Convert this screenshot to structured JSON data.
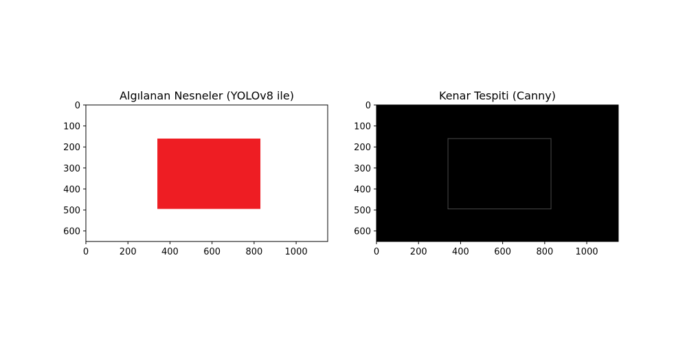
{
  "chart_data": [
    {
      "type": "image",
      "title": "Algılanan Nesneler (YOLOv8 ile)",
      "xlim": [
        0,
        1150
      ],
      "ylim": [
        650,
        0
      ],
      "xticks": [
        0,
        200,
        400,
        600,
        800,
        1000
      ],
      "yticks": [
        0,
        100,
        200,
        300,
        400,
        500,
        600
      ],
      "background": "#ffffff",
      "rectangles": [
        {
          "x0": 340,
          "y0": 160,
          "x1": 830,
          "y1": 495,
          "fill": "#ee1d23",
          "stroke": "none"
        }
      ]
    },
    {
      "type": "image",
      "title": "Kenar Tespiti (Canny)",
      "xlim": [
        0,
        1150
      ],
      "ylim": [
        650,
        0
      ],
      "xticks": [
        0,
        200,
        400,
        600,
        800,
        1000
      ],
      "yticks": [
        0,
        100,
        200,
        300,
        400,
        500,
        600
      ],
      "background": "#000000",
      "rectangles": [
        {
          "x0": 340,
          "y0": 160,
          "x1": 830,
          "y1": 495,
          "fill": "none",
          "stroke": "#4a4a4a"
        }
      ]
    }
  ]
}
